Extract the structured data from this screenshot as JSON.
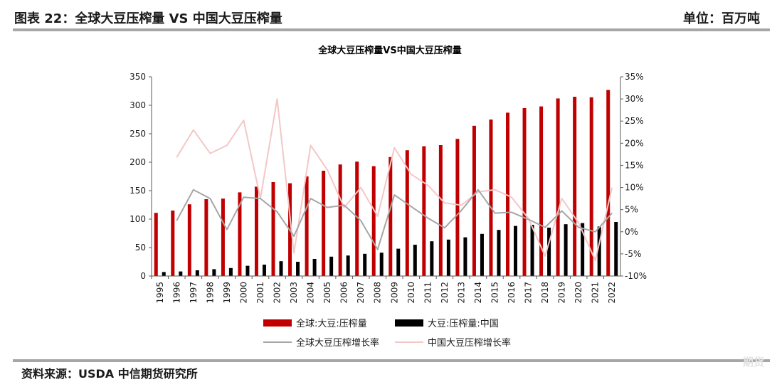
{
  "header": {
    "figure_title": "图表 22：全球大豆压榨量 VS 中国大豆压榨量",
    "unit": "单位：百万吨"
  },
  "footer": {
    "source": "资料来源：USDA 中信期货研究所",
    "watermark": "期货"
  },
  "colors": {
    "global_bar": "#c00000",
    "china_bar": "#000000",
    "global_growth_line": "#a6a6a6",
    "china_growth_line": "#f4c7c7",
    "rule": "#a6a6a6"
  },
  "chart_data": {
    "type": "bar",
    "title": "全球大豆压榨量VS中国大豆压榨量",
    "categories": [
      "1995",
      "1996",
      "1997",
      "1998",
      "1999",
      "2000",
      "2001",
      "2002",
      "2003",
      "2004",
      "2005",
      "2006",
      "2007",
      "2008",
      "2009",
      "2010",
      "2011",
      "2012",
      "2013",
      "2014",
      "2015",
      "2016",
      "2017",
      "2018",
      "2019",
      "2020",
      "2021",
      "2022"
    ],
    "y_left": {
      "min": 0,
      "max": 350,
      "ticks": [
        0,
        50,
        100,
        150,
        200,
        250,
        300,
        350
      ]
    },
    "y_right": {
      "min": -10,
      "max": 35,
      "ticks": [
        -10,
        -5,
        0,
        5,
        10,
        15,
        20,
        25,
        30,
        35
      ],
      "unit": "%"
    },
    "series": [
      {
        "name": "全球:大豆:压榨量",
        "kind": "bar",
        "axis": "left",
        "values": [
          111,
          115,
          126,
          135,
          136,
          147,
          157,
          165,
          163,
          175,
          185,
          196,
          201,
          193,
          209,
          221,
          228,
          230,
          241,
          264,
          275,
          287,
          295,
          298,
          312,
          315,
          314,
          327
        ]
      },
      {
        "name": "大豆:压榨量:中国",
        "kind": "bar",
        "axis": "left",
        "values": [
          7,
          8,
          10,
          12,
          14,
          18,
          20,
          26,
          25,
          30,
          34,
          36,
          39,
          41,
          48,
          55,
          61,
          64,
          68,
          74,
          81,
          88,
          90,
          85,
          91,
          93,
          87,
          95
        ]
      },
      {
        "name": "全球大豆压榨增长率",
        "kind": "line",
        "axis": "right",
        "values": [
          null,
          2.5,
          9.5,
          7.5,
          0.5,
          7.8,
          7.5,
          4.5,
          -1.0,
          7.5,
          5.5,
          6.0,
          2.5,
          -4.0,
          8.3,
          5.7,
          3.1,
          0.9,
          4.8,
          9.5,
          4.2,
          4.4,
          2.8,
          1.0,
          4.7,
          1.0,
          0.0,
          4.2
        ]
      },
      {
        "name": "中国大豆压榨增长率",
        "kind": "line",
        "axis": "right",
        "values": [
          null,
          16.8,
          23.0,
          17.7,
          19.5,
          25.2,
          7.5,
          30.0,
          -4.8,
          19.5,
          14.0,
          5.5,
          10.0,
          3.5,
          19.0,
          13.0,
          10.5,
          6.5,
          6.0,
          9.0,
          9.5,
          7.8,
          3.0,
          -5.5,
          7.5,
          2.0,
          -6.5,
          10.0
        ]
      }
    ],
    "legend_position": "bottom",
    "grid": false
  }
}
